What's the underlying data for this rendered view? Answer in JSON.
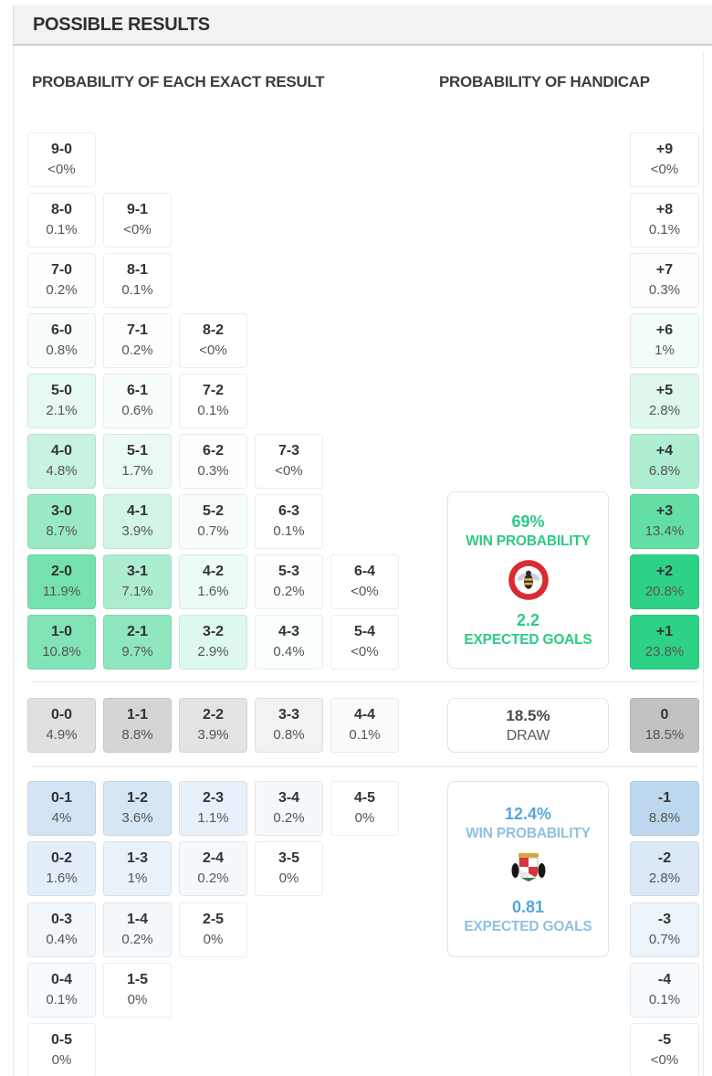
{
  "header": {
    "title": "POSSIBLE RESULTS"
  },
  "section_titles": {
    "exact_result": "PROBABILITY OF EACH EXACT RESULT",
    "handicap": "PROBABILITY OF HANDICAP"
  },
  "summaries": {
    "home": {
      "win_probability": "69%",
      "win_probability_label": "WIN PROBABILITY",
      "expected_goals": "2.2",
      "expected_goals_label": "EXPECTED GOALS",
      "team_logo": "brentford-crest"
    },
    "draw": {
      "probability": "18.5%",
      "label": "DRAW"
    },
    "away": {
      "win_probability": "12.4%",
      "win_probability_label": "WIN PROBABILITY",
      "expected_goals": "0.81",
      "expected_goals_label": "EXPECTED GOALS",
      "team_logo": "sunderland-crest"
    }
  },
  "colors": {
    "home_accent": "#2ed286",
    "draw_accent": "#c2c2c2",
    "away_accent": "#bdd8ee",
    "home_text": "#2bcb83",
    "away_value_text": "#55a7da",
    "away_label_text": "#8fc0e2"
  },
  "chart_data": {
    "type": "heatmap",
    "title": "POSSIBLE RESULTS",
    "exact_results": {
      "home_win": [
        [
          {
            "score": "9-0",
            "pct": "<0%",
            "value": 0
          }
        ],
        [
          {
            "score": "8-0",
            "pct": "0.1%",
            "value": 0.1
          },
          {
            "score": "9-1",
            "pct": "<0%",
            "value": 0
          }
        ],
        [
          {
            "score": "7-0",
            "pct": "0.2%",
            "value": 0.2
          },
          {
            "score": "8-1",
            "pct": "0.1%",
            "value": 0.1
          }
        ],
        [
          {
            "score": "6-0",
            "pct": "0.8%",
            "value": 0.8
          },
          {
            "score": "7-1",
            "pct": "0.2%",
            "value": 0.2
          },
          {
            "score": "8-2",
            "pct": "<0%",
            "value": 0
          }
        ],
        [
          {
            "score": "5-0",
            "pct": "2.1%",
            "value": 2.1
          },
          {
            "score": "6-1",
            "pct": "0.6%",
            "value": 0.6
          },
          {
            "score": "7-2",
            "pct": "0.1%",
            "value": 0.1
          }
        ],
        [
          {
            "score": "4-0",
            "pct": "4.8%",
            "value": 4.8
          },
          {
            "score": "5-1",
            "pct": "1.7%",
            "value": 1.7
          },
          {
            "score": "6-2",
            "pct": "0.3%",
            "value": 0.3
          },
          {
            "score": "7-3",
            "pct": "<0%",
            "value": 0
          }
        ],
        [
          {
            "score": "3-0",
            "pct": "8.7%",
            "value": 8.7
          },
          {
            "score": "4-1",
            "pct": "3.9%",
            "value": 3.9
          },
          {
            "score": "5-2",
            "pct": "0.7%",
            "value": 0.7
          },
          {
            "score": "6-3",
            "pct": "0.1%",
            "value": 0.1
          }
        ],
        [
          {
            "score": "2-0",
            "pct": "11.9%",
            "value": 11.9
          },
          {
            "score": "3-1",
            "pct": "7.1%",
            "value": 7.1
          },
          {
            "score": "4-2",
            "pct": "1.6%",
            "value": 1.6
          },
          {
            "score": "5-3",
            "pct": "0.2%",
            "value": 0.2
          },
          {
            "score": "6-4",
            "pct": "<0%",
            "value": 0
          }
        ],
        [
          {
            "score": "1-0",
            "pct": "10.8%",
            "value": 10.8
          },
          {
            "score": "2-1",
            "pct": "9.7%",
            "value": 9.7
          },
          {
            "score": "3-2",
            "pct": "2.9%",
            "value": 2.9
          },
          {
            "score": "4-3",
            "pct": "0.4%",
            "value": 0.4
          },
          {
            "score": "5-4",
            "pct": "<0%",
            "value": 0
          }
        ]
      ],
      "draw": [
        {
          "score": "0-0",
          "pct": "4.9%",
          "value": 4.9
        },
        {
          "score": "1-1",
          "pct": "8.8%",
          "value": 8.8
        },
        {
          "score": "2-2",
          "pct": "3.9%",
          "value": 3.9
        },
        {
          "score": "3-3",
          "pct": "0.8%",
          "value": 0.8
        },
        {
          "score": "4-4",
          "pct": "0.1%",
          "value": 0.1
        }
      ],
      "away_win": [
        [
          {
            "score": "0-1",
            "pct": "4%",
            "value": 4
          },
          {
            "score": "1-2",
            "pct": "3.6%",
            "value": 3.6
          },
          {
            "score": "2-3",
            "pct": "1.1%",
            "value": 1.1
          },
          {
            "score": "3-4",
            "pct": "0.2%",
            "value": 0.2
          },
          {
            "score": "4-5",
            "pct": "0%",
            "value": 0
          }
        ],
        [
          {
            "score": "0-2",
            "pct": "1.6%",
            "value": 1.6
          },
          {
            "score": "1-3",
            "pct": "1%",
            "value": 1
          },
          {
            "score": "2-4",
            "pct": "0.2%",
            "value": 0.2
          },
          {
            "score": "3-5",
            "pct": "0%",
            "value": 0
          }
        ],
        [
          {
            "score": "0-3",
            "pct": "0.4%",
            "value": 0.4
          },
          {
            "score": "1-4",
            "pct": "0.2%",
            "value": 0.2
          },
          {
            "score": "2-5",
            "pct": "0%",
            "value": 0
          }
        ],
        [
          {
            "score": "0-4",
            "pct": "0.1%",
            "value": 0.1
          },
          {
            "score": "1-5",
            "pct": "0%",
            "value": 0
          }
        ],
        [
          {
            "score": "0-5",
            "pct": "0%",
            "value": 0
          }
        ]
      ]
    },
    "handicap": {
      "home": [
        {
          "line": "+9",
          "pct": "<0%",
          "value": 0
        },
        {
          "line": "+8",
          "pct": "0.1%",
          "value": 0.1
        },
        {
          "line": "+7",
          "pct": "0.3%",
          "value": 0.3
        },
        {
          "line": "+6",
          "pct": "1%",
          "value": 1
        },
        {
          "line": "+5",
          "pct": "2.8%",
          "value": 2.8
        },
        {
          "line": "+4",
          "pct": "6.8%",
          "value": 6.8
        },
        {
          "line": "+3",
          "pct": "13.4%",
          "value": 13.4
        },
        {
          "line": "+2",
          "pct": "20.8%",
          "value": 20.8
        },
        {
          "line": "+1",
          "pct": "23.8%",
          "value": 23.8
        }
      ],
      "draw": {
        "line": "0",
        "pct": "18.5%",
        "value": 18.5
      },
      "away": [
        {
          "line": "-1",
          "pct": "8.8%",
          "value": 8.8
        },
        {
          "line": "-2",
          "pct": "2.8%",
          "value": 2.8
        },
        {
          "line": "-3",
          "pct": "0.7%",
          "value": 0.7
        },
        {
          "line": "-4",
          "pct": "0.1%",
          "value": 0.1
        },
        {
          "line": "-5",
          "pct": "<0%",
          "value": 0
        }
      ]
    }
  }
}
